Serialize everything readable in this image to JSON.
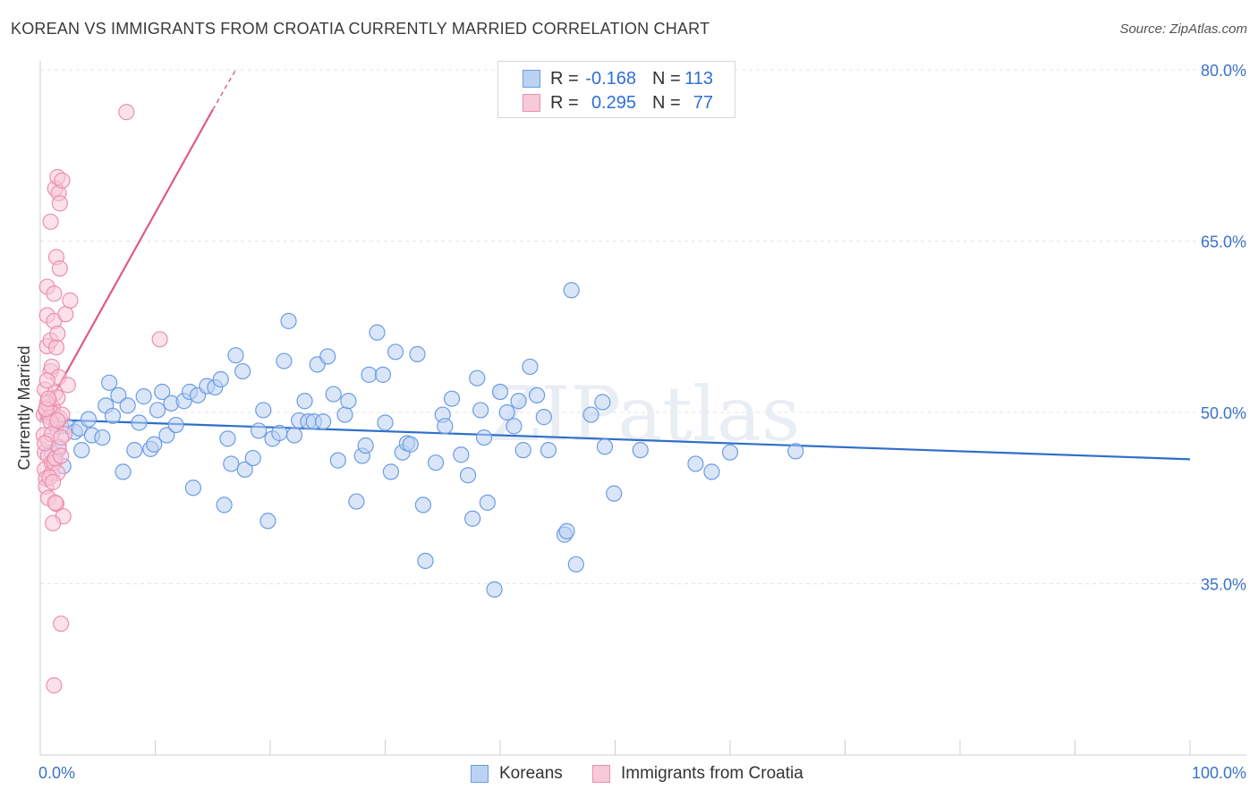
{
  "header": {
    "title": "KOREAN VS IMMIGRANTS FROM CROATIA CURRENTLY MARRIED CORRELATION CHART",
    "source": "Source: ZipAtlas.com"
  },
  "legend_top": [
    {
      "r_label": "R =",
      "r_value": "-0.168",
      "n_label": "N =",
      "n_value": "113"
    },
    {
      "r_label": "R =",
      "r_value": "0.295",
      "n_label": "N =",
      "n_value": "77"
    }
  ],
  "legend_bottom": [
    "Koreans",
    "Immigrants from Croatia"
  ],
  "colors": {
    "korean_fill": "#bcd2f3",
    "korean_stroke": "#6b9ce3",
    "korean_line": "#2f6fc9",
    "croatia_fill": "#f8c9d8",
    "croatia_stroke": "#ec8fae",
    "croatia_line": "#e05a86",
    "axis_label": "#3b72c8",
    "grid": "#e4e4e4"
  },
  "chart_data": {
    "type": "scatter",
    "ylabel": "Currently Married",
    "xlabel": "",
    "xlim": [
      0,
      100
    ],
    "ylim": [
      20,
      80
    ],
    "x_tick_labels": [
      "0.0%",
      "100.0%"
    ],
    "y_ticks": [
      35,
      50,
      65,
      80
    ],
    "y_tick_labels": [
      "35.0%",
      "50.0%",
      "65.0%",
      "80.0%"
    ],
    "watermark": "ZIPatlas",
    "series": [
      {
        "name": "Koreans",
        "trend": {
          "x": [
            0,
            100
          ],
          "y": [
            49.4,
            45.9
          ]
        },
        "points": [
          [
            1.0,
            46.5
          ],
          [
            1.2,
            45.8
          ],
          [
            1.5,
            49.2
          ],
          [
            1.6,
            46.8
          ],
          [
            1.8,
            48.8
          ],
          [
            2.0,
            45.3
          ],
          [
            2.3,
            48.8
          ],
          [
            3.0,
            48.3
          ],
          [
            3.4,
            48.6
          ],
          [
            3.6,
            46.7
          ],
          [
            4.2,
            49.4
          ],
          [
            4.5,
            48.0
          ],
          [
            5.4,
            47.8
          ],
          [
            5.7,
            50.6
          ],
          [
            6.0,
            52.6
          ],
          [
            6.3,
            49.7
          ],
          [
            6.8,
            51.5
          ],
          [
            7.2,
            44.8
          ],
          [
            7.6,
            50.6
          ],
          [
            8.2,
            46.7
          ],
          [
            8.6,
            49.1
          ],
          [
            9.0,
            51.4
          ],
          [
            9.6,
            46.8
          ],
          [
            9.9,
            47.2
          ],
          [
            10.2,
            50.2
          ],
          [
            10.6,
            51.8
          ],
          [
            11.0,
            48.0
          ],
          [
            11.4,
            50.8
          ],
          [
            11.8,
            48.9
          ],
          [
            12.5,
            51.0
          ],
          [
            13.0,
            51.8
          ],
          [
            13.3,
            43.4
          ],
          [
            13.7,
            51.5
          ],
          [
            14.5,
            52.3
          ],
          [
            15.2,
            52.2
          ],
          [
            15.7,
            52.9
          ],
          [
            16.0,
            41.9
          ],
          [
            16.3,
            47.7
          ],
          [
            16.6,
            45.5
          ],
          [
            17.0,
            55.0
          ],
          [
            17.6,
            53.6
          ],
          [
            17.8,
            45.0
          ],
          [
            18.5,
            46.0
          ],
          [
            19.0,
            48.4
          ],
          [
            19.4,
            50.2
          ],
          [
            19.8,
            40.5
          ],
          [
            20.2,
            47.7
          ],
          [
            20.8,
            48.2
          ],
          [
            21.2,
            54.5
          ],
          [
            21.6,
            58.0
          ],
          [
            22.1,
            48.0
          ],
          [
            22.5,
            49.3
          ],
          [
            23.0,
            51.0
          ],
          [
            23.3,
            49.2
          ],
          [
            23.8,
            49.2
          ],
          [
            24.1,
            54.2
          ],
          [
            24.6,
            49.2
          ],
          [
            25.0,
            54.9
          ],
          [
            25.5,
            51.6
          ],
          [
            25.9,
            45.8
          ],
          [
            26.5,
            49.8
          ],
          [
            26.8,
            51.0
          ],
          [
            27.5,
            42.2
          ],
          [
            28.0,
            46.2
          ],
          [
            28.3,
            47.1
          ],
          [
            28.6,
            53.3
          ],
          [
            29.3,
            57.0
          ],
          [
            29.8,
            53.3
          ],
          [
            30.0,
            49.1
          ],
          [
            30.5,
            44.8
          ],
          [
            30.9,
            55.3
          ],
          [
            31.5,
            46.5
          ],
          [
            31.9,
            47.3
          ],
          [
            32.2,
            47.2
          ],
          [
            32.8,
            55.1
          ],
          [
            33.3,
            41.9
          ],
          [
            33.5,
            37.0
          ],
          [
            34.4,
            45.6
          ],
          [
            35.0,
            49.8
          ],
          [
            35.2,
            48.8
          ],
          [
            35.8,
            51.2
          ],
          [
            36.6,
            46.3
          ],
          [
            37.2,
            44.5
          ],
          [
            37.6,
            40.7
          ],
          [
            38.0,
            53.0
          ],
          [
            38.3,
            50.2
          ],
          [
            38.6,
            47.8
          ],
          [
            38.9,
            42.1
          ],
          [
            39.5,
            34.5
          ],
          [
            40.0,
            51.8
          ],
          [
            40.6,
            50.0
          ],
          [
            41.2,
            48.8
          ],
          [
            41.6,
            51.0
          ],
          [
            42.0,
            46.7
          ],
          [
            42.6,
            54.0
          ],
          [
            43.2,
            51.5
          ],
          [
            43.8,
            49.6
          ],
          [
            44.2,
            46.7
          ],
          [
            45.6,
            39.3
          ],
          [
            45.8,
            39.6
          ],
          [
            46.2,
            60.7
          ],
          [
            46.6,
            36.7
          ],
          [
            47.9,
            49.8
          ],
          [
            48.9,
            50.9
          ],
          [
            49.1,
            47.0
          ],
          [
            49.9,
            42.9
          ],
          [
            52.2,
            46.7
          ],
          [
            57.0,
            45.5
          ],
          [
            58.4,
            44.8
          ],
          [
            60.0,
            46.5
          ],
          [
            65.7,
            46.6
          ]
        ]
      },
      {
        "name": "Immigrants from Croatia",
        "trend": {
          "x": [
            0,
            15
          ],
          "y": [
            49.4,
            76.5
          ]
        },
        "trend_dashed": {
          "x": [
            15,
            17
          ],
          "y": [
            76.5,
            80.0
          ]
        },
        "points": [
          [
            0.3,
            49.8
          ],
          [
            0.3,
            48.0
          ],
          [
            0.4,
            46.5
          ],
          [
            0.4,
            45.0
          ],
          [
            0.4,
            52.0
          ],
          [
            0.5,
            50.2
          ],
          [
            0.5,
            44.2
          ],
          [
            0.5,
            43.5
          ],
          [
            0.6,
            55.8
          ],
          [
            0.6,
            58.5
          ],
          [
            0.6,
            61.0
          ],
          [
            0.7,
            47.5
          ],
          [
            0.7,
            46.2
          ],
          [
            0.7,
            42.5
          ],
          [
            0.8,
            51.0
          ],
          [
            0.8,
            50.5
          ],
          [
            0.8,
            49.6
          ],
          [
            0.9,
            53.6
          ],
          [
            0.9,
            56.3
          ],
          [
            1.0,
            54.0
          ],
          [
            1.0,
            45.6
          ],
          [
            1.0,
            44.7
          ],
          [
            1.1,
            50.4
          ],
          [
            1.1,
            49.9
          ],
          [
            1.2,
            60.4
          ],
          [
            1.2,
            58.0
          ],
          [
            1.2,
            45.6
          ],
          [
            1.3,
            69.6
          ],
          [
            1.3,
            51.7
          ],
          [
            1.3,
            46.0
          ],
          [
            1.4,
            63.6
          ],
          [
            1.4,
            55.7
          ],
          [
            1.4,
            48.9
          ],
          [
            1.4,
            42.0
          ],
          [
            1.5,
            70.6
          ],
          [
            1.5,
            56.9
          ],
          [
            1.5,
            51.3
          ],
          [
            1.5,
            44.7
          ],
          [
            1.6,
            69.2
          ],
          [
            1.6,
            53.1
          ],
          [
            1.6,
            47.0
          ],
          [
            1.7,
            68.3
          ],
          [
            1.7,
            62.6
          ],
          [
            1.7,
            49.5
          ],
          [
            1.8,
            31.5
          ],
          [
            1.8,
            46.2
          ],
          [
            1.9,
            70.3
          ],
          [
            1.9,
            49.8
          ],
          [
            2.0,
            40.9
          ],
          [
            2.1,
            48.1
          ],
          [
            2.2,
            58.6
          ],
          [
            2.4,
            52.4
          ],
          [
            2.6,
            59.8
          ],
          [
            7.5,
            76.3
          ],
          [
            10.4,
            56.4
          ],
          [
            1.1,
            40.3
          ],
          [
            1.2,
            26.1
          ],
          [
            0.6,
            50.8
          ],
          [
            0.9,
            49.2
          ],
          [
            1.0,
            48.1
          ],
          [
            1.3,
            42.1
          ],
          [
            0.5,
            50.3
          ],
          [
            0.8,
            44.3
          ],
          [
            1.1,
            43.9
          ],
          [
            0.4,
            47.3
          ],
          [
            0.7,
            51.2
          ],
          [
            1.5,
            49.3
          ],
          [
            0.9,
            66.7
          ],
          [
            0.6,
            52.8
          ],
          [
            1.8,
            47.8
          ]
        ]
      }
    ]
  }
}
